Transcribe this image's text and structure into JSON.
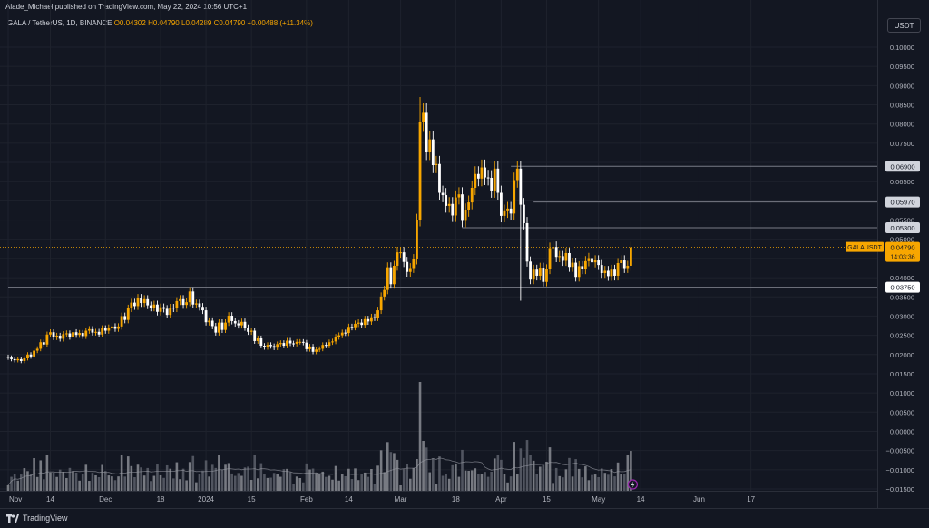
{
  "header": {
    "publisher": "Alade_Michael published on TradingView.com, May 22, 2024 10:56 UTC+1",
    "symbol": "GALA / TetherUS, 1D, BINANCE",
    "open": "O0.04302",
    "high": "H0.04790",
    "low": "L0.04289",
    "close": "C0.04790",
    "change": "+0.00488 (+11.34%)"
  },
  "currency_button": "USDT",
  "footer": {
    "brand": "TradingView"
  },
  "colors": {
    "background": "#131722",
    "up": "#f7a600",
    "down": "#ffffff",
    "grid": "#1e222d",
    "level_line": "#787b86",
    "price_line": "#f7a600"
  },
  "chart_data": {
    "type": "candlestick",
    "symbol": "GALAUSDT",
    "y_ticks": [
      "0.10000",
      "0.09500",
      "0.09000",
      "0.08500",
      "0.08000",
      "0.07500",
      "0.07000",
      "0.06500",
      "0.06000",
      "0.05500",
      "0.05000",
      "0.04500",
      "0.04000",
      "0.03500",
      "0.03000",
      "0.02500",
      "0.02000",
      "0.01500",
      "0.01000",
      "0.00500",
      "0.00000",
      "−0.00500",
      "−0.01000",
      "−0.01500"
    ],
    "y_tick_values": [
      0.1,
      0.095,
      0.09,
      0.085,
      0.08,
      0.075,
      0.07,
      0.065,
      0.06,
      0.055,
      0.05,
      0.045,
      0.04,
      0.035,
      0.03,
      0.025,
      0.02,
      0.015,
      0.01,
      0.005,
      0.0,
      -0.005,
      -0.01,
      -0.015
    ],
    "ylim": [
      -0.0155,
      0.1035
    ],
    "x_ticks": [
      {
        "label": "Nov",
        "day": 0
      },
      {
        "label": "14",
        "day": 13
      },
      {
        "label": "Dec",
        "day": 30
      },
      {
        "label": "18",
        "day": 47
      },
      {
        "label": "2024",
        "day": 61
      },
      {
        "label": "15",
        "day": 75
      },
      {
        "label": "Feb",
        "day": 92
      },
      {
        "label": "14",
        "day": 105
      },
      {
        "label": "Mar",
        "day": 121
      },
      {
        "label": "18",
        "day": 138
      },
      {
        "label": "Apr",
        "day": 152
      },
      {
        "label": "15",
        "day": 166
      },
      {
        "label": "May",
        "day": 182
      },
      {
        "label": "14",
        "day": 195
      },
      {
        "label": "Jun",
        "day": 213
      },
      {
        "label": "17",
        "day": 229
      }
    ],
    "level_lines": [
      {
        "label": "0.06900",
        "value": 0.069,
        "start_day": 155
      },
      {
        "label": "0.05970",
        "value": 0.0597,
        "start_day": 162
      },
      {
        "label": "0.05300",
        "value": 0.053,
        "start_day": 140
      },
      {
        "label": "0.03750",
        "value": 0.0375,
        "start_day": 0
      }
    ],
    "last_price": {
      "symbol": "GALAUSDT",
      "value": 0.0479,
      "label": "0.04790",
      "countdown": "14:03:36"
    },
    "closes": [
      0.0192,
      0.0188,
      0.0185,
      0.0188,
      0.0183,
      0.019,
      0.02,
      0.0195,
      0.021,
      0.0215,
      0.0232,
      0.0226,
      0.0252,
      0.0258,
      0.0245,
      0.0249,
      0.0241,
      0.0253,
      0.0255,
      0.0246,
      0.0258,
      0.0251,
      0.0256,
      0.0248,
      0.0262,
      0.0266,
      0.0257,
      0.0259,
      0.0252,
      0.0268,
      0.0262,
      0.027,
      0.0273,
      0.0267,
      0.0273,
      0.03,
      0.029,
      0.032,
      0.0335,
      0.0326,
      0.0347,
      0.0334,
      0.0344,
      0.0328,
      0.0322,
      0.033,
      0.0311,
      0.0323,
      0.0319,
      0.0303,
      0.0322,
      0.032,
      0.0339,
      0.0344,
      0.0329,
      0.0336,
      0.0364,
      0.033,
      0.0333,
      0.0324,
      0.0315,
      0.0284,
      0.0288,
      0.0274,
      0.0257,
      0.0283,
      0.0264,
      0.0283,
      0.0301,
      0.0287,
      0.0281,
      0.0276,
      0.0285,
      0.027,
      0.0259,
      0.0262,
      0.0235,
      0.0242,
      0.0223,
      0.0219,
      0.0225,
      0.0222,
      0.0218,
      0.0227,
      0.023,
      0.0223,
      0.0236,
      0.0229,
      0.0228,
      0.0233,
      0.0233,
      0.0231,
      0.0214,
      0.0221,
      0.0207,
      0.0213,
      0.0215,
      0.0225,
      0.0223,
      0.0232,
      0.0234,
      0.0246,
      0.025,
      0.0257,
      0.0256,
      0.0272,
      0.0271,
      0.028,
      0.0283,
      0.0277,
      0.0292,
      0.0286,
      0.0297,
      0.0296,
      0.0315,
      0.0351,
      0.0368,
      0.0427,
      0.0383,
      0.0431,
      0.0466,
      0.0466,
      0.0441,
      0.0415,
      0.0425,
      0.0448,
      0.055,
      0.0806,
      0.0829,
      0.0728,
      0.076,
      0.0693,
      0.0696,
      0.0621,
      0.0615,
      0.0587,
      0.0592,
      0.0562,
      0.0609,
      0.0617,
      0.0548,
      0.0576,
      0.0596,
      0.0634,
      0.067,
      0.0658,
      0.0687,
      0.0661,
      0.066,
      0.0627,
      0.0684,
      0.0621,
      0.0561,
      0.0573,
      0.058,
      0.0567,
      0.0654,
      0.0684,
      0.059,
      0.0542,
      0.0442,
      0.0395,
      0.0421,
      0.0405,
      0.0426,
      0.0389,
      0.0422,
      0.0477,
      0.048,
      0.0454,
      0.0456,
      0.0444,
      0.0464,
      0.0428,
      0.0439,
      0.0402,
      0.043,
      0.0422,
      0.0443,
      0.0451,
      0.044,
      0.0445,
      0.0433,
      0.0412,
      0.0418,
      0.0404,
      0.0421,
      0.0405,
      0.0438,
      0.0445,
      0.0425,
      0.0431,
      0.0479
    ]
  }
}
